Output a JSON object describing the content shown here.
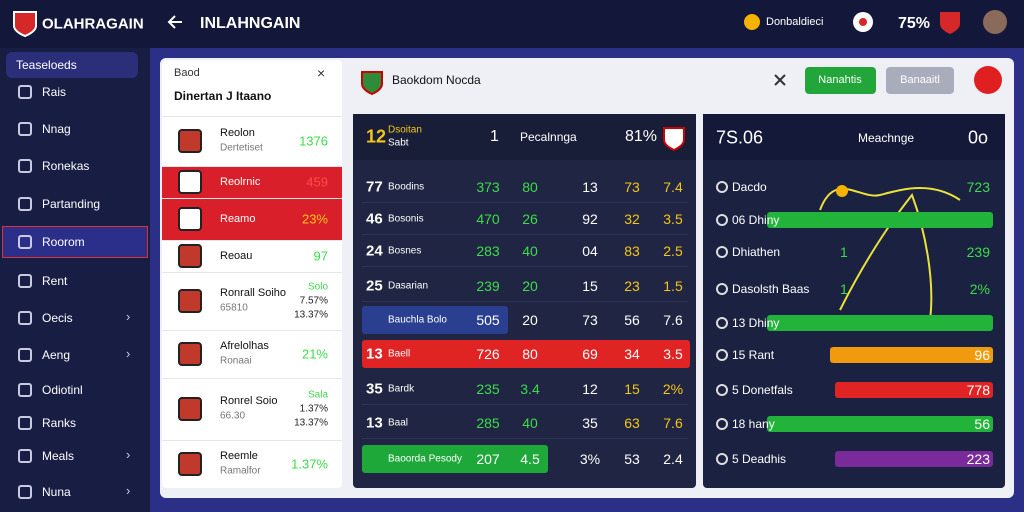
{
  "topbar": {
    "brand": "OLAHRAGAIN",
    "page_title": "INLAHNGAIN",
    "coins": "Donbaldieci",
    "percent": "75%"
  },
  "sidebar": {
    "heading": "Teaseloeds",
    "items": [
      {
        "label": "Rais",
        "submenu": false,
        "selected": false
      },
      {
        "label": "Nnag",
        "submenu": false,
        "selected": false
      },
      {
        "label": "Ronekas",
        "submenu": false,
        "selected": false
      },
      {
        "label": "Partanding",
        "submenu": false,
        "selected": false
      },
      {
        "label": "Roorom",
        "submenu": false,
        "selected": true
      },
      {
        "label": "Rent",
        "submenu": false,
        "selected": false
      },
      {
        "label": "Oecis",
        "submenu": true,
        "selected": false
      },
      {
        "label": "Aeng",
        "submenu": true,
        "selected": false
      },
      {
        "label": "Odiotinl",
        "submenu": false,
        "selected": false
      },
      {
        "label": "Ranks",
        "submenu": false,
        "selected": false
      },
      {
        "label": "Meals",
        "submenu": true,
        "selected": false
      },
      {
        "label": "Nuna",
        "submenu": true,
        "selected": false
      }
    ]
  },
  "left_panel": {
    "header": "Baod",
    "title": "Dinertan J Itaano",
    "rows": [
      {
        "name": "Reolon",
        "sub": "Dertetiset",
        "values": [
          "1376"
        ],
        "highlight": false
      },
      {
        "name": "Reolrnic",
        "sub": null,
        "values": [
          "459"
        ],
        "highlight": true
      },
      {
        "name": "Reamo",
        "sub": null,
        "values": [
          "23%"
        ],
        "highlight": true
      },
      {
        "name": "Reoau",
        "sub": null,
        "values": [
          "97"
        ],
        "highlight": false
      },
      {
        "name": "Ronrall Soiho",
        "sub": "65810",
        "values": [
          "Solo",
          "7.57%",
          "13.37%"
        ],
        "highlight": false
      },
      {
        "name": "Afrelolhas",
        "sub": "Ronaai",
        "values": [
          "21%"
        ],
        "highlight": false
      },
      {
        "name": "Ronrel Soio",
        "sub": "66.30",
        "values": [
          "Sala",
          "1.37%",
          "13.37%"
        ],
        "highlight": false
      },
      {
        "name": "Reemle",
        "sub": "Ramalfor",
        "values": [
          "1.37%"
        ],
        "highlight": false
      }
    ]
  },
  "center": {
    "title": "Baokdom Nocda",
    "primary_button": "Nanahtis",
    "secondary_button": "Banaaitl"
  },
  "table": {
    "header": {
      "rank": "12",
      "name": "Dsoitan",
      "sub": "Sabt",
      "count": "1",
      "label": "Pecalnnga",
      "percent": "81%"
    },
    "rows": [
      {
        "rank": "77",
        "name": "Boodins",
        "cells": [
          "373",
          "80",
          "13",
          "73",
          "7.4"
        ],
        "highlight": "none"
      },
      {
        "rank": "46",
        "name": "Bosonis",
        "cells": [
          "470",
          "26",
          "92",
          "32",
          "3.5"
        ],
        "highlight": "none"
      },
      {
        "rank": "24",
        "name": "Bosnes",
        "cells": [
          "283",
          "40",
          "04",
          "83",
          "2.5"
        ],
        "highlight": "none"
      },
      {
        "rank": "25",
        "name": "Dasarian",
        "cells": [
          "239",
          "20",
          "15",
          "23",
          "1.5"
        ],
        "highlight": "none"
      },
      {
        "rank": "",
        "name": "Bauchla Bolo",
        "cells": [
          "505",
          "20",
          "73",
          "56",
          "7.6"
        ],
        "highlight": "blue"
      },
      {
        "rank": "13",
        "name": "Baell",
        "cells": [
          "726",
          "80",
          "69",
          "34",
          "3.5"
        ],
        "highlight": "red"
      },
      {
        "rank": "35",
        "name": "Bardk",
        "cells": [
          "235",
          "3.4",
          "12",
          "15",
          "2%"
        ],
        "highlight": "none"
      },
      {
        "rank": "13",
        "name": "Baal",
        "cells": [
          "285",
          "40",
          "35",
          "63",
          "7.6"
        ],
        "highlight": "none"
      },
      {
        "rank": "",
        "name": "Baoorda Pesody",
        "cells": [
          "207",
          "4.5",
          "3%",
          "53",
          "2.4"
        ],
        "highlight": "green"
      }
    ]
  },
  "right_panel": {
    "score": "7S.06",
    "title": "Meachnge",
    "result": "0o",
    "rows": [
      {
        "label": "Dacdo",
        "mid": null,
        "value": "723",
        "bar": "none"
      },
      {
        "label": "06 Dhiny",
        "mid": null,
        "value": null,
        "bar": "green"
      },
      {
        "label": "Dhiathen",
        "mid": "1",
        "value": "239",
        "bar": "none"
      },
      {
        "label": "Dasolsth Baas",
        "mid": "1",
        "value": "2%",
        "bar": "none"
      },
      {
        "label": "13 Dhiny",
        "mid": null,
        "value": null,
        "bar": "green"
      },
      {
        "label": "15 Rant",
        "mid": null,
        "value": "96",
        "bar": "orange"
      },
      {
        "label": "5 Donetfals",
        "mid": null,
        "value": "778",
        "bar": "red"
      },
      {
        "label": "18 hany",
        "mid": null,
        "value": "56",
        "bar": "green"
      },
      {
        "label": "5 Deadhis",
        "mid": null,
        "value": "223",
        "bar": "purple"
      }
    ]
  }
}
